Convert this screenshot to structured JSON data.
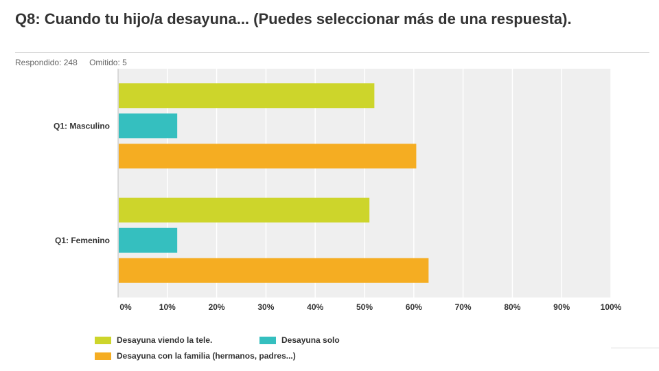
{
  "header": {
    "title": "Q8: Cuando tu hijo/a desayuna... (Puedes seleccionar más de una respuesta).",
    "answered": "Respondido: 248",
    "skipped": "Omitido: 5"
  },
  "chart_data": {
    "type": "bar",
    "orientation": "horizontal",
    "categories": [
      "Q1: Masculino",
      "Q1: Femenino"
    ],
    "series": [
      {
        "name": "Desayuna viendo la tele.",
        "color": "#cdd52b",
        "values": [
          52,
          51
        ]
      },
      {
        "name": "Desayuna solo",
        "color": "#35bfbf",
        "values": [
          12,
          12
        ]
      },
      {
        "name": "Desayuna con la familia (hermanos, padres...)",
        "color": "#f5ad22",
        "values": [
          60.5,
          63
        ]
      }
    ],
    "xlim": [
      0,
      100
    ],
    "x_ticks": [
      "0%",
      "10%",
      "20%",
      "30%",
      "40%",
      "50%",
      "60%",
      "70%",
      "80%",
      "90%",
      "100%"
    ],
    "grid": true,
    "legend_position": "bottom",
    "colors": {
      "plot_background": "#efefef",
      "gridline": "#ffffff"
    }
  }
}
